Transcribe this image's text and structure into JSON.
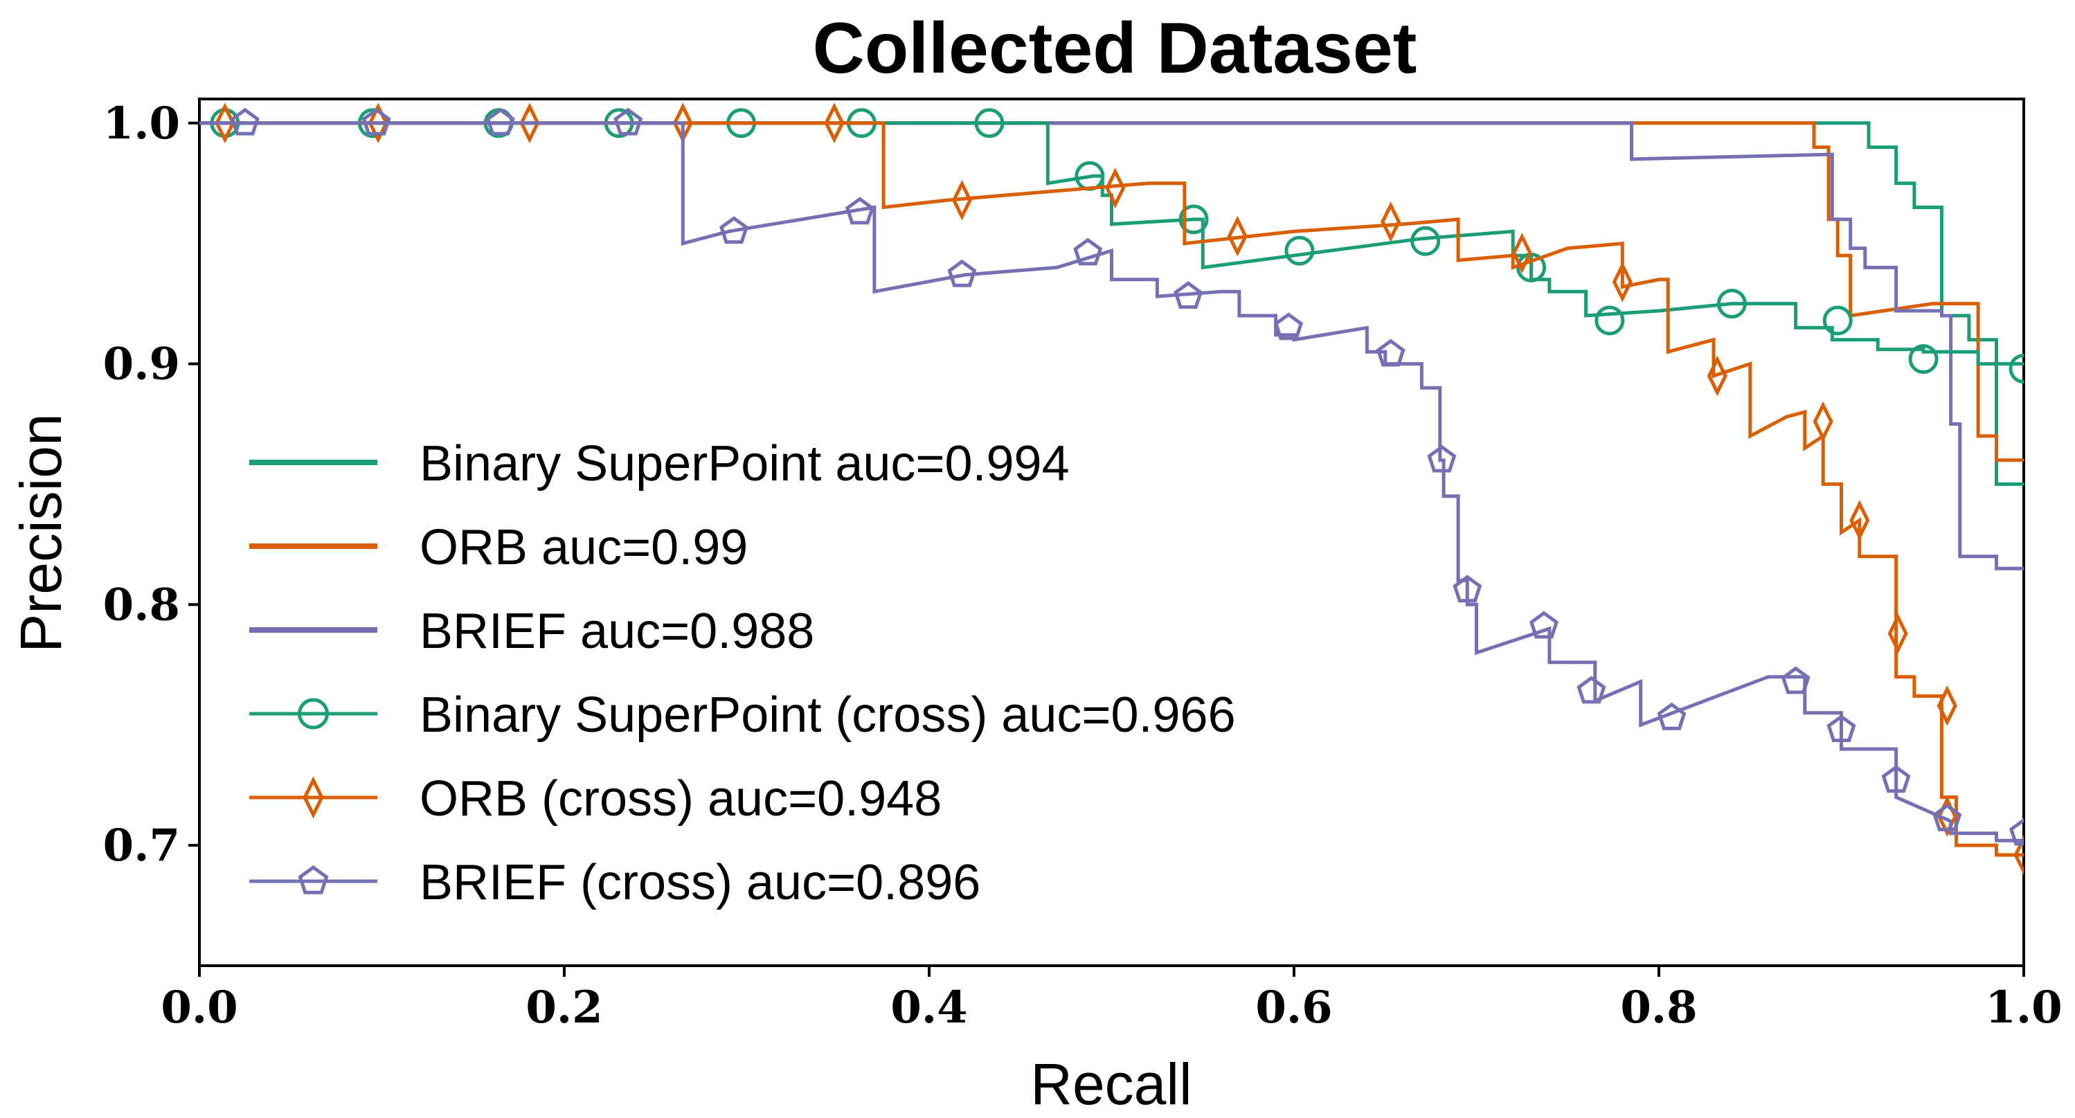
{
  "chart_data": {
    "type": "line",
    "title": "Collected Dataset",
    "xlabel": "Recall",
    "ylabel": "Precision",
    "xlim": [
      0.0,
      1.0
    ],
    "ylim": [
      0.65,
      1.01
    ],
    "xticks": [
      0.0,
      0.2,
      0.4,
      0.6,
      0.8,
      1.0
    ],
    "xtick_labels": [
      "0.0",
      "0.2",
      "0.4",
      "0.6",
      "0.8",
      "1.0"
    ],
    "yticks": [
      0.7,
      0.8,
      0.9,
      1.0
    ],
    "ytick_labels": [
      "0.7",
      "0.8",
      "0.9",
      "1.0"
    ],
    "grid": false,
    "legend_position": "center-left",
    "series": [
      {
        "name": "Binary SuperPoint auc=0.994",
        "color": "#1b9e77",
        "marker": "none",
        "points": [
          [
            0.0,
            1.0
          ],
          [
            0.915,
            1.0
          ],
          [
            0.915,
            0.99
          ],
          [
            0.93,
            0.99
          ],
          [
            0.93,
            0.975
          ],
          [
            0.94,
            0.975
          ],
          [
            0.94,
            0.965
          ],
          [
            0.955,
            0.965
          ],
          [
            0.955,
            0.92
          ],
          [
            0.97,
            0.92
          ],
          [
            0.97,
            0.91
          ],
          [
            0.985,
            0.91
          ],
          [
            0.985,
            0.85
          ],
          [
            1.0,
            0.85
          ]
        ]
      },
      {
        "name": "ORB auc=0.99",
        "color": "#d95f02",
        "marker": "none",
        "points": [
          [
            0.0,
            1.0
          ],
          [
            0.885,
            1.0
          ],
          [
            0.885,
            0.99
          ],
          [
            0.893,
            0.99
          ],
          [
            0.893,
            0.96
          ],
          [
            0.898,
            0.96
          ],
          [
            0.898,
            0.945
          ],
          [
            0.905,
            0.945
          ],
          [
            0.905,
            0.92
          ],
          [
            0.95,
            0.925
          ],
          [
            0.955,
            0.925
          ],
          [
            0.975,
            0.925
          ],
          [
            0.975,
            0.87
          ],
          [
            0.985,
            0.87
          ],
          [
            0.985,
            0.86
          ],
          [
            1.0,
            0.86
          ]
        ]
      },
      {
        "name": "BRIEF auc=0.988",
        "color": "#7570b3",
        "marker": "none",
        "points": [
          [
            0.0,
            1.0
          ],
          [
            0.785,
            1.0
          ],
          [
            0.785,
            0.985
          ],
          [
            0.895,
            0.987
          ],
          [
            0.895,
            0.96
          ],
          [
            0.905,
            0.96
          ],
          [
            0.905,
            0.948
          ],
          [
            0.913,
            0.948
          ],
          [
            0.913,
            0.94
          ],
          [
            0.93,
            0.94
          ],
          [
            0.93,
            0.922
          ],
          [
            0.955,
            0.922
          ],
          [
            0.955,
            0.92
          ],
          [
            0.96,
            0.92
          ],
          [
            0.96,
            0.875
          ],
          [
            0.965,
            0.875
          ],
          [
            0.965,
            0.82
          ],
          [
            0.985,
            0.82
          ],
          [
            0.985,
            0.815
          ],
          [
            1.0,
            0.815
          ]
        ]
      },
      {
        "name": "Binary SuperPoint (cross) auc=0.966",
        "color": "#1b9e77",
        "marker": "circle",
        "points": [
          [
            0.0,
            1.0
          ],
          [
            0.465,
            1.0
          ],
          [
            0.465,
            0.975
          ],
          [
            0.49,
            0.978
          ],
          [
            0.495,
            0.978
          ],
          [
            0.495,
            0.97
          ],
          [
            0.5,
            0.97
          ],
          [
            0.5,
            0.958
          ],
          [
            0.545,
            0.96
          ],
          [
            0.55,
            0.96
          ],
          [
            0.55,
            0.94
          ],
          [
            0.67,
            0.952
          ],
          [
            0.72,
            0.955
          ],
          [
            0.72,
            0.945
          ],
          [
            0.73,
            0.945
          ],
          [
            0.73,
            0.935
          ],
          [
            0.74,
            0.935
          ],
          [
            0.74,
            0.93
          ],
          [
            0.76,
            0.93
          ],
          [
            0.76,
            0.92
          ],
          [
            0.8,
            0.922
          ],
          [
            0.84,
            0.925
          ],
          [
            0.875,
            0.925
          ],
          [
            0.875,
            0.915
          ],
          [
            0.895,
            0.915
          ],
          [
            0.895,
            0.91
          ],
          [
            0.92,
            0.91
          ],
          [
            0.92,
            0.906
          ],
          [
            0.945,
            0.906
          ],
          [
            0.945,
            0.905
          ],
          [
            0.975,
            0.905
          ],
          [
            0.975,
            0.9
          ],
          [
            1.0,
            0.9
          ]
        ],
        "marker_points": [
          [
            0.014,
            1.0
          ],
          [
            0.095,
            1.0
          ],
          [
            0.164,
            1.0
          ],
          [
            0.23,
            1.0
          ],
          [
            0.297,
            1.0
          ],
          [
            0.363,
            1.0
          ],
          [
            0.433,
            1.0
          ],
          [
            0.488,
            0.978
          ],
          [
            0.545,
            0.96
          ],
          [
            0.603,
            0.947
          ],
          [
            0.672,
            0.951
          ],
          [
            0.73,
            0.94
          ],
          [
            0.773,
            0.918
          ],
          [
            0.84,
            0.925
          ],
          [
            0.898,
            0.918
          ],
          [
            0.945,
            0.902
          ],
          [
            1.0,
            0.898
          ]
        ]
      },
      {
        "name": "ORB (cross) auc=0.948",
        "color": "#d95f02",
        "marker": "diamond",
        "points": [
          [
            0.0,
            1.0
          ],
          [
            0.375,
            1.0
          ],
          [
            0.375,
            0.965
          ],
          [
            0.41,
            0.968
          ],
          [
            0.52,
            0.975
          ],
          [
            0.54,
            0.975
          ],
          [
            0.54,
            0.95
          ],
          [
            0.6,
            0.955
          ],
          [
            0.66,
            0.958
          ],
          [
            0.69,
            0.96
          ],
          [
            0.69,
            0.943
          ],
          [
            0.72,
            0.945
          ],
          [
            0.72,
            0.94
          ],
          [
            0.75,
            0.948
          ],
          [
            0.78,
            0.95
          ],
          [
            0.78,
            0.932
          ],
          [
            0.8,
            0.935
          ],
          [
            0.805,
            0.935
          ],
          [
            0.805,
            0.905
          ],
          [
            0.83,
            0.91
          ],
          [
            0.83,
            0.895
          ],
          [
            0.85,
            0.9
          ],
          [
            0.85,
            0.87
          ],
          [
            0.87,
            0.878
          ],
          [
            0.88,
            0.88
          ],
          [
            0.88,
            0.865
          ],
          [
            0.89,
            0.87
          ],
          [
            0.89,
            0.85
          ],
          [
            0.9,
            0.85
          ],
          [
            0.9,
            0.83
          ],
          [
            0.91,
            0.835
          ],
          [
            0.91,
            0.82
          ],
          [
            0.93,
            0.82
          ],
          [
            0.93,
            0.77
          ],
          [
            0.94,
            0.77
          ],
          [
            0.94,
            0.762
          ],
          [
            0.955,
            0.762
          ],
          [
            0.955,
            0.72
          ],
          [
            0.963,
            0.72
          ],
          [
            0.963,
            0.7
          ],
          [
            0.985,
            0.7
          ],
          [
            0.985,
            0.696
          ],
          [
            1.0,
            0.696
          ]
        ],
        "marker_points": [
          [
            0.014,
            1.0
          ],
          [
            0.098,
            1.0
          ],
          [
            0.181,
            1.0
          ],
          [
            0.265,
            1.0
          ],
          [
            0.348,
            1.0
          ],
          [
            0.418,
            0.968
          ],
          [
            0.502,
            0.973
          ],
          [
            0.569,
            0.953
          ],
          [
            0.653,
            0.959
          ],
          [
            0.725,
            0.946
          ],
          [
            0.78,
            0.934
          ],
          [
            0.832,
            0.895
          ],
          [
            0.89,
            0.876
          ],
          [
            0.91,
            0.835
          ],
          [
            0.931,
            0.788
          ],
          [
            0.958,
            0.758
          ],
          [
            0.958,
            0.712
          ],
          [
            1.0,
            0.696
          ]
        ]
      },
      {
        "name": "BRIEF (cross) auc=0.896",
        "color": "#7570b3",
        "marker": "pentagon",
        "points": [
          [
            0.0,
            1.0
          ],
          [
            0.265,
            1.0
          ],
          [
            0.265,
            0.95
          ],
          [
            0.29,
            0.955
          ],
          [
            0.37,
            0.965
          ],
          [
            0.37,
            0.93
          ],
          [
            0.42,
            0.937
          ],
          [
            0.47,
            0.94
          ],
          [
            0.5,
            0.947
          ],
          [
            0.5,
            0.935
          ],
          [
            0.525,
            0.935
          ],
          [
            0.525,
            0.928
          ],
          [
            0.56,
            0.93
          ],
          [
            0.57,
            0.93
          ],
          [
            0.57,
            0.92
          ],
          [
            0.59,
            0.92
          ],
          [
            0.59,
            0.912
          ],
          [
            0.6,
            0.912
          ],
          [
            0.6,
            0.91
          ],
          [
            0.64,
            0.915
          ],
          [
            0.64,
            0.905
          ],
          [
            0.65,
            0.905
          ],
          [
            0.65,
            0.9
          ],
          [
            0.67,
            0.9
          ],
          [
            0.67,
            0.89
          ],
          [
            0.68,
            0.89
          ],
          [
            0.68,
            0.86
          ],
          [
            0.682,
            0.86
          ],
          [
            0.682,
            0.845
          ],
          [
            0.69,
            0.845
          ],
          [
            0.69,
            0.81
          ],
          [
            0.695,
            0.81
          ],
          [
            0.695,
            0.8
          ],
          [
            0.7,
            0.8
          ],
          [
            0.7,
            0.78
          ],
          [
            0.74,
            0.79
          ],
          [
            0.74,
            0.776
          ],
          [
            0.765,
            0.776
          ],
          [
            0.765,
            0.76
          ],
          [
            0.79,
            0.768
          ],
          [
            0.79,
            0.75
          ],
          [
            0.86,
            0.77
          ],
          [
            0.88,
            0.77
          ],
          [
            0.88,
            0.755
          ],
          [
            0.9,
            0.755
          ],
          [
            0.9,
            0.74
          ],
          [
            0.93,
            0.74
          ],
          [
            0.93,
            0.72
          ],
          [
            0.96,
            0.71
          ],
          [
            0.96,
            0.705
          ],
          [
            0.985,
            0.705
          ],
          [
            0.985,
            0.702
          ],
          [
            1.0,
            0.702
          ]
        ],
        "marker_points": [
          [
            0.025,
            1.0
          ],
          [
            0.097,
            1.0
          ],
          [
            0.165,
            1.0
          ],
          [
            0.235,
            1.0
          ],
          [
            0.293,
            0.955
          ],
          [
            0.362,
            0.963
          ],
          [
            0.418,
            0.937
          ],
          [
            0.487,
            0.946
          ],
          [
            0.542,
            0.928
          ],
          [
            0.597,
            0.915
          ],
          [
            0.653,
            0.904
          ],
          [
            0.681,
            0.86
          ],
          [
            0.695,
            0.806
          ],
          [
            0.737,
            0.791
          ],
          [
            0.763,
            0.764
          ],
          [
            0.807,
            0.753
          ],
          [
            0.875,
            0.768
          ],
          [
            0.9,
            0.748
          ],
          [
            0.93,
            0.727
          ],
          [
            0.958,
            0.711
          ],
          [
            1.0,
            0.705
          ]
        ]
      }
    ]
  }
}
